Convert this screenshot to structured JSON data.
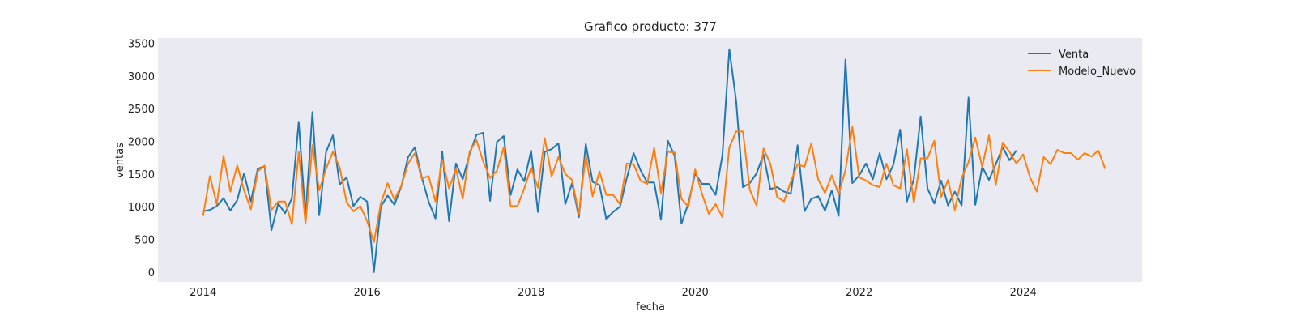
{
  "chart_data": {
    "type": "line",
    "title": "Grafico producto: 377",
    "xlabel": "fecha",
    "ylabel": "ventas",
    "xlim": [
      2013.45,
      2025.45
    ],
    "ylim": [
      -150,
      3580
    ],
    "xticks": [
      2014,
      2016,
      2018,
      2020,
      2022,
      2024
    ],
    "yticks": [
      0,
      500,
      1000,
      1500,
      2000,
      2500,
      3000,
      3500
    ],
    "grid": false,
    "legend_position": "top-right",
    "x_start": "2014-01",
    "x_step": "month",
    "series": [
      {
        "name": "Venta",
        "color": "#1f77b4",
        "values": [
          930,
          950,
          1010,
          1130,
          940,
          1100,
          1510,
          1080,
          1580,
          1620,
          640,
          1050,
          900,
          1130,
          2300,
          850,
          2450,
          870,
          1840,
          2090,
          1340,
          1450,
          1010,
          1150,
          1080,
          0,
          1000,
          1170,
          1030,
          1310,
          1760,
          1910,
          1450,
          1080,
          820,
          1840,
          780,
          1660,
          1420,
          1800,
          2100,
          2130,
          1090,
          1990,
          2080,
          1180,
          1570,
          1390,
          1860,
          920,
          1840,
          1880,
          1970,
          1040,
          1360,
          840,
          1960,
          1380,
          1330,
          810,
          920,
          1000,
          1440,
          1820,
          1560,
          1370,
          1370,
          800,
          2010,
          1780,
          740,
          1050,
          1510,
          1350,
          1350,
          1180,
          1790,
          3410,
          2620,
          1300,
          1360,
          1510,
          1800,
          1270,
          1300,
          1230,
          1200,
          1940,
          930,
          1120,
          1160,
          940,
          1250,
          860,
          3250,
          1360,
          1480,
          1660,
          1420,
          1820,
          1420,
          1640,
          2180,
          1080,
          1420,
          2380,
          1280,
          1050,
          1400,
          1020,
          1230,
          1020,
          2670,
          1030,
          1610,
          1410,
          1650,
          1910,
          1710,
          1860
        ]
      },
      {
        "name": "Modelo_Nuevo",
        "color": "#ff7f0e",
        "values": [
          860,
          1470,
          1040,
          1780,
          1230,
          1630,
          1250,
          960,
          1540,
          1630,
          950,
          1080,
          1080,
          730,
          1840,
          740,
          1940,
          1250,
          1580,
          1840,
          1600,
          1070,
          930,
          1010,
          780,
          460,
          1050,
          1360,
          1110,
          1320,
          1660,
          1820,
          1430,
          1470,
          1080,
          1720,
          1280,
          1580,
          1120,
          1840,
          2020,
          1690,
          1440,
          1550,
          1910,
          1010,
          1010,
          1280,
          1600,
          1290,
          2050,
          1460,
          1760,
          1500,
          1410,
          890,
          1790,
          1160,
          1540,
          1180,
          1180,
          1040,
          1660,
          1650,
          1400,
          1350,
          1900,
          1210,
          1840,
          1830,
          1120,
          1000,
          1570,
          1200,
          890,
          1040,
          840,
          1910,
          2150,
          2150,
          1260,
          1020,
          1890,
          1660,
          1150,
          1080,
          1380,
          1650,
          1610,
          1970,
          1420,
          1210,
          1480,
          1190,
          1560,
          2220,
          1450,
          1400,
          1330,
          1300,
          1660,
          1330,
          1280,
          1880,
          1060,
          1740,
          1740,
          2010,
          1150,
          1410,
          950,
          1440,
          1680,
          2060,
          1610,
          2090,
          1330,
          1980,
          1840,
          1660,
          1800,
          1450,
          1230,
          1760,
          1650,
          1870,
          1820,
          1820,
          1720,
          1820,
          1770,
          1860,
          1580
        ]
      }
    ]
  }
}
